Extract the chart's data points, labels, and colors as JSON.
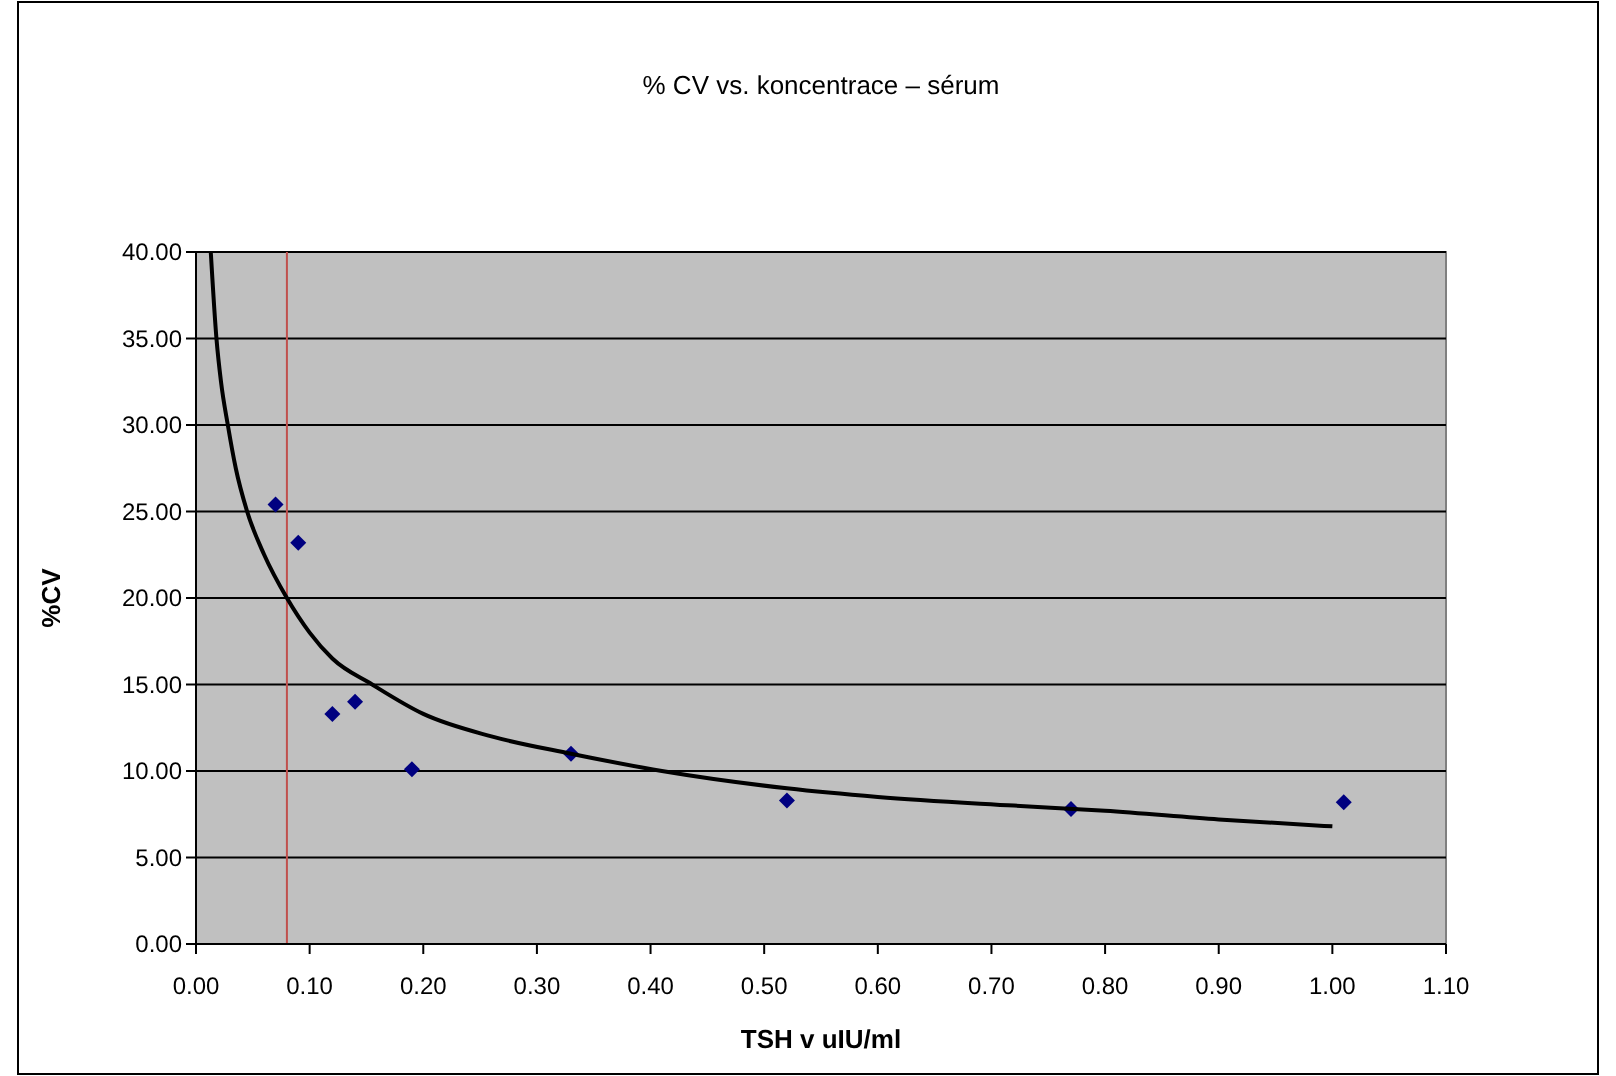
{
  "chart_data": {
    "type": "scatter",
    "title": "% CV vs. koncentrace – sérum",
    "xlabel": "TSH v uIU/ml",
    "ylabel": "%CV",
    "xlim": [
      0,
      1.1
    ],
    "xticks": [
      {
        "value": 0,
        "label": "0.00"
      },
      {
        "value": 0.1,
        "label": "0.10"
      },
      {
        "value": 0.2,
        "label": "0.20"
      },
      {
        "value": 0.3,
        "label": "0.30"
      },
      {
        "value": 0.4,
        "label": "0.40"
      },
      {
        "value": 0.5,
        "label": "0.50"
      },
      {
        "value": 0.6,
        "label": "0.60"
      },
      {
        "value": 0.7,
        "label": "0.70"
      },
      {
        "value": 0.8,
        "label": "0.80"
      },
      {
        "value": 0.9,
        "label": "0.90"
      },
      {
        "value": 1,
        "label": "1.00"
      },
      {
        "value": 1.1,
        "label": "1.10"
      }
    ],
    "ylim": [
      0,
      40
    ],
    "yticks": [
      {
        "value": 0,
        "label": "0.00"
      },
      {
        "value": 5,
        "label": "5.00"
      },
      {
        "value": 10,
        "label": "10.00"
      },
      {
        "value": 15,
        "label": "15.00"
      },
      {
        "value": 20,
        "label": "20.00"
      },
      {
        "value": 25,
        "label": "25.00"
      },
      {
        "value": 30,
        "label": "30.00"
      },
      {
        "value": 35,
        "label": "35.00"
      },
      {
        "value": 40,
        "label": "40.00"
      }
    ],
    "grid": "y",
    "marker": "diamond",
    "ref_lines": [
      {
        "axis": "x",
        "value": 0.08,
        "color": "#c0504d"
      }
    ],
    "series": [
      {
        "color": "#000080",
        "x": [
          0.07,
          0.09,
          0.12,
          0.14,
          0.19,
          0.33,
          0.52,
          0.77,
          1.01
        ],
        "values": [
          25.4,
          23.2,
          13.3,
          14.0,
          10.1,
          11.0,
          8.3,
          7.8,
          8.2
        ]
      },
      {
        "type": "line",
        "color": "#000000",
        "marker": "none",
        "x": [
          0.013,
          0.018,
          0.022,
          0.028,
          0.035,
          0.045,
          0.06,
          0.08,
          0.1,
          0.12,
          0.155,
          0.2,
          0.26,
          0.33,
          0.41,
          0.52,
          0.6,
          0.72,
          0.8,
          0.9,
          1.0
        ],
        "values": [
          40,
          35,
          32.5,
          30,
          27.5,
          25,
          22.5,
          20,
          18,
          16.5,
          15,
          13.3,
          12,
          11,
          10,
          9,
          8.5,
          8,
          7.7,
          7.2,
          6.8
        ]
      }
    ]
  }
}
